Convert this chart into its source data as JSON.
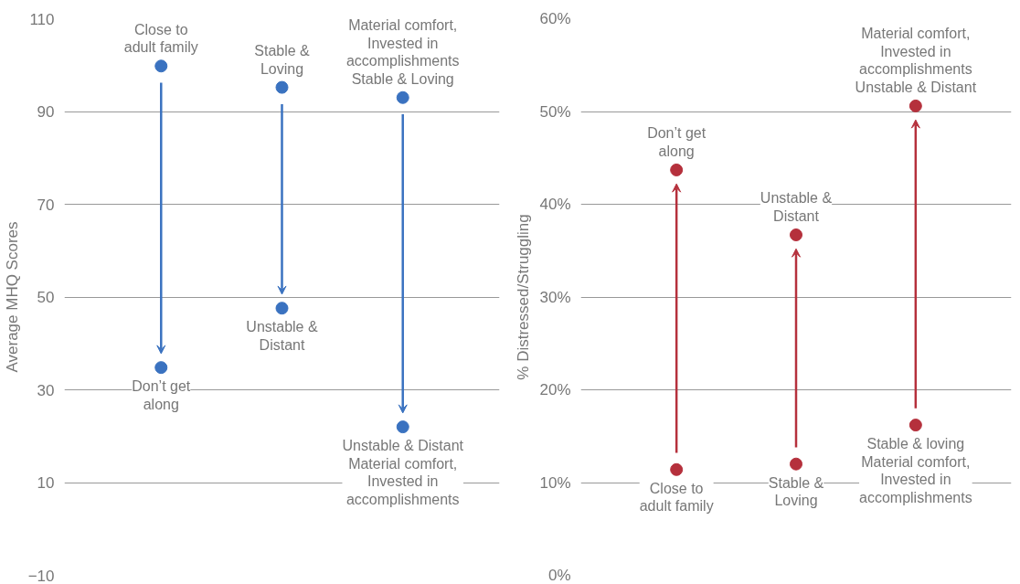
{
  "chart_data": [
    {
      "type": "scatter",
      "ylabel": "Average MHQ Scores",
      "categories": [
        null,
        null,
        null
      ],
      "ylim": [
        -10,
        110
      ],
      "yticks": [
        -10,
        10,
        30,
        50,
        70,
        90,
        110
      ],
      "grid": "y",
      "marker": "circle",
      "tick_labels": "y",
      "series": [
        {
          "color": "#3a72c0",
          "values": [
            99.8,
            95.2,
            93
          ]
        },
        {
          "color": "#3a72c0",
          "values": [
            34.8,
            47.6,
            22
          ]
        }
      ],
      "annotations": [
        {
          "text": "Close to\nadult family",
          "y": 99.8
        },
        {
          "text": "Don’t get\nalong",
          "y": 34.8
        },
        {
          "text": "Stable &\nLoving",
          "y": 95.2
        },
        {
          "text": "Unstable &\nDistant",
          "y": 47.6
        },
        {
          "text": "Material comfort,\nInvested in\naccomplishments\nStable & Loving",
          "y": 93
        },
        {
          "text": "Unstable & Distant\nMaterial comfort,\nInvested in\naccomplishments",
          "y": 22
        }
      ]
    },
    {
      "type": "scatter",
      "ylabel": "% Distressed/Struggling",
      "categories": [
        null,
        null,
        null
      ],
      "ylim": [
        0,
        60
      ],
      "yticks": [
        {
          "value": 0,
          "label": "0%"
        },
        {
          "value": 10,
          "label": "10%"
        },
        {
          "value": 20,
          "label": "20%"
        },
        {
          "value": 30,
          "label": "30%"
        },
        {
          "value": 40,
          "label": "40%"
        },
        {
          "value": 50,
          "label": "50%"
        },
        {
          "value": 60,
          "label": "60%"
        }
      ],
      "grid": "y",
      "marker": "circle",
      "tick_labels": "y",
      "series": [
        {
          "color": "#b5303c",
          "values": [
            11.4,
            12.0,
            16.2
          ]
        },
        {
          "color": "#b5303c",
          "values": [
            43.7,
            36.7,
            50.6
          ]
        }
      ],
      "annotations": [
        {
          "text": "Close to\nadult family",
          "y": 11.4
        },
        {
          "text": "Don’t get\nalong",
          "y": 43.7
        },
        {
          "text": "Stable &\nLoving",
          "y": 12.0
        },
        {
          "text": "Unstable &\nDistant",
          "y": 36.7
        },
        {
          "text": "Stable & loving\nMaterial comfort,\nInvested in\naccomplishments",
          "y": 16.2
        },
        {
          "text": "Material comfort,\nInvested in\naccomplishments\nUnstable & Distant",
          "y": 50.6
        }
      ]
    }
  ]
}
